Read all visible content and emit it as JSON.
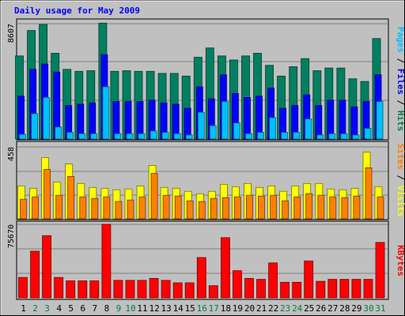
{
  "chart_data": {
    "type": "bar",
    "title": "Daily usage for May 2009",
    "days": [
      "1",
      "2",
      "3",
      "4",
      "5",
      "6",
      "7",
      "8",
      "9",
      "10",
      "11",
      "12",
      "13",
      "14",
      "15",
      "16",
      "17",
      "18",
      "19",
      "20",
      "21",
      "22",
      "23",
      "24",
      "25",
      "26",
      "27",
      "28",
      "29",
      "30",
      "31"
    ],
    "weekend_days": [
      "2",
      "3",
      "9",
      "10",
      "16",
      "17",
      "23",
      "24",
      "30",
      "31"
    ],
    "panels": [
      {
        "name": "hits-files-pages",
        "ymax_label": "8607",
        "ymax": 8607,
        "legend": [
          {
            "text": "Pages",
            "color": "#00c0ff"
          },
          {
            "text": " / ",
            "color": "#000000"
          },
          {
            "text": "Files",
            "color": "#0000ff"
          },
          {
            "text": " / ",
            "color": "#000000"
          },
          {
            "text": "Hits",
            "color": "#008040"
          }
        ],
        "series": [
          {
            "name": "Hits",
            "color": "#008060",
            "values": [
              6200,
              8100,
              8550,
              6400,
              5200,
              5050,
              5100,
              8650,
              5050,
              5100,
              5050,
              5050,
              4900,
              4900,
              4700,
              6100,
              6800,
              6200,
              5900,
              6200,
              6400,
              5500,
              4700,
              5400,
              6000,
              5100,
              5300,
              5300,
              4500,
              4300,
              7500
            ]
          },
          {
            "name": "Files",
            "color": "#0000ff",
            "values": [
              3200,
              5200,
              5600,
              5000,
              2500,
              2600,
              2700,
              6300,
              2800,
              2800,
              2800,
              2900,
              2700,
              2600,
              2300,
              3900,
              3000,
              4800,
              3400,
              3100,
              3200,
              3800,
              2300,
              2500,
              3300,
              2500,
              2900,
              2900,
              2400,
              2800,
              4800
            ]
          },
          {
            "name": "Pages",
            "color": "#00c0ff",
            "values": [
              350,
              1900,
              3100,
              900,
              500,
              400,
              400,
              3900,
              400,
              400,
              400,
              600,
              500,
              400,
              300,
              2000,
              1000,
              2800,
              1200,
              400,
              500,
              1600,
              500,
              500,
              1500,
              300,
              400,
              400,
              300,
              800,
              2800
            ]
          }
        ]
      },
      {
        "name": "visits-sites",
        "ymax_label": "458",
        "ymax": 458,
        "legend": [
          {
            "text": "Sites",
            "color": "#ff8000"
          },
          {
            "text": " / ",
            "color": "#000000"
          },
          {
            "text": "Visits",
            "color": "#ffff00"
          }
        ],
        "series": [
          {
            "name": "Visits",
            "color": "#ffff00",
            "values": [
              210,
              195,
              390,
              235,
              350,
              225,
              200,
              195,
              185,
              190,
              210,
              340,
              200,
              195,
              175,
              160,
              175,
              220,
              205,
              225,
              200,
              210,
              175,
              210,
              225,
              225,
              190,
              185,
              195,
              425,
              205
            ]
          },
          {
            "name": "Sites",
            "color": "#ff8000",
            "values": [
              125,
              140,
              315,
              150,
              270,
              140,
              130,
              140,
              110,
              120,
              140,
              290,
              150,
              145,
              115,
              110,
              130,
              135,
              140,
              150,
              145,
              150,
              115,
              140,
              160,
              150,
              140,
              135,
              145,
              325,
              140
            ]
          }
        ]
      },
      {
        "name": "kbytes",
        "ymax_label": "75670",
        "ymax": 75670,
        "legend": [
          {
            "text": "KBytes",
            "color": "#ff0000"
          }
        ],
        "series": [
          {
            "name": "KBytes",
            "color": "#ff0000",
            "values": [
              21000,
              48000,
              64000,
              21000,
              17500,
              17500,
              17500,
              75670,
              18000,
              18000,
              18000,
              20000,
              18000,
              15500,
              15500,
              41500,
              12500,
              62000,
              28000,
              20000,
              19000,
              36000,
              16000,
              16000,
              38000,
              17000,
              19000,
              19000,
              19000,
              19000,
              57000
            ]
          }
        ]
      }
    ]
  }
}
